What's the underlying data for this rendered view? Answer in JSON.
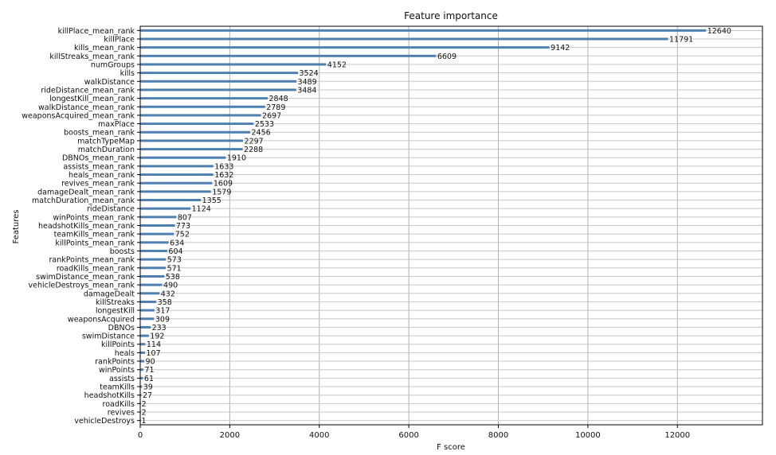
{
  "chart_data": {
    "type": "bar",
    "orientation": "horizontal",
    "title": "Feature importance",
    "xlabel": "F score",
    "ylabel": "Features",
    "xlim": [
      0,
      13900
    ],
    "xticks": [
      0,
      2000,
      4000,
      6000,
      8000,
      10000,
      12000
    ],
    "grid": true,
    "bar_color": "#4f7fae",
    "categories": [
      "killPlace_mean_rank",
      "killPlace",
      "kills_mean_rank",
      "killStreaks_mean_rank",
      "numGroups",
      "kills",
      "walkDistance",
      "rideDistance_mean_rank",
      "longestKill_mean_rank",
      "walkDistance_mean_rank",
      "weaponsAcquired_mean_rank",
      "maxPlace",
      "boosts_mean_rank",
      "matchTypeMap",
      "matchDuration",
      "DBNOs_mean_rank",
      "assists_mean_rank",
      "heals_mean_rank",
      "revives_mean_rank",
      "damageDealt_mean_rank",
      "matchDuration_mean_rank",
      "rideDistance",
      "winPoints_mean_rank",
      "headshotKills_mean_rank",
      "teamKills_mean_rank",
      "killPoints_mean_rank",
      "boosts",
      "rankPoints_mean_rank",
      "roadKills_mean_rank",
      "swimDistance_mean_rank",
      "vehicleDestroys_mean_rank",
      "damageDealt",
      "killStreaks",
      "longestKill",
      "weaponsAcquired",
      "DBNOs",
      "swimDistance",
      "killPoints",
      "heals",
      "rankPoints",
      "winPoints",
      "assists",
      "teamKills",
      "headshotKills",
      "roadKills",
      "revives",
      "vehicleDestroys"
    ],
    "values": [
      12640,
      11791,
      9142,
      6609,
      4152,
      3524,
      3489,
      3484,
      2848,
      2789,
      2697,
      2533,
      2456,
      2297,
      2288,
      1910,
      1633,
      1632,
      1609,
      1579,
      1355,
      1124,
      807,
      773,
      752,
      634,
      604,
      573,
      571,
      538,
      490,
      432,
      358,
      317,
      309,
      233,
      192,
      114,
      107,
      90,
      71,
      61,
      39,
      27,
      2,
      2,
      1
    ]
  }
}
